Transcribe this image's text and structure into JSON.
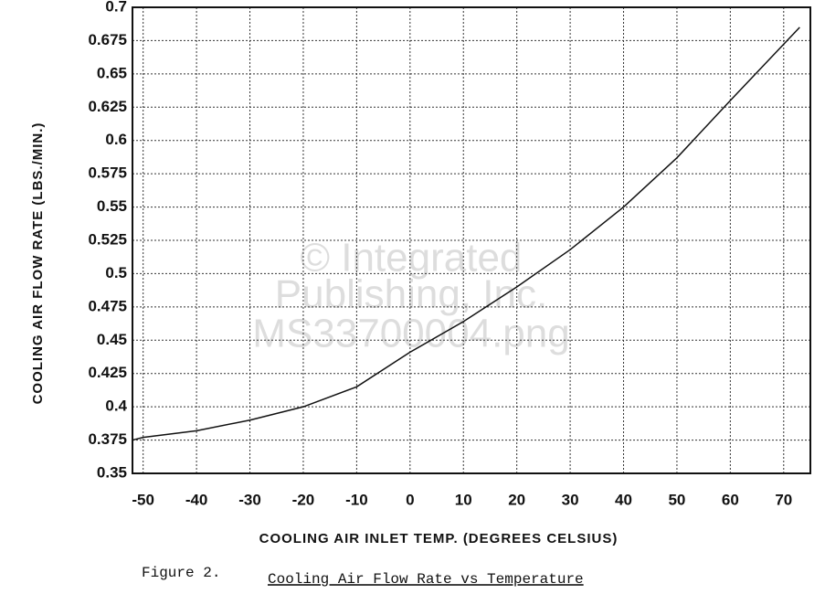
{
  "chart_data": {
    "type": "line",
    "x_label": "COOLING AIR INLET TEMP. (DEGREES CELSIUS)",
    "y_label": "COOLING AIR FLOW RATE (LBS./MIN.)",
    "caption_prefix": "Figure 2.",
    "caption": "Cooling Air Flow Rate vs Temperature",
    "watermark": [
      "© Integrated",
      "Publishing, Inc.",
      "MS33700004.png"
    ],
    "x": [
      -52,
      -50,
      -40,
      -30,
      -20,
      -10,
      0,
      10,
      20,
      30,
      40,
      50,
      60,
      73
    ],
    "series": [
      {
        "name": "Cooling air flow rate",
        "color": "#111111",
        "values": [
          0.375,
          0.377,
          0.382,
          0.39,
          0.4,
          0.415,
          0.441,
          0.464,
          0.49,
          0.518,
          0.55,
          0.587,
          0.63,
          0.685
        ]
      }
    ],
    "xlim": [
      -52,
      75
    ],
    "ylim": [
      0.35,
      0.7
    ],
    "xticks": [
      -50,
      -40,
      -30,
      -20,
      -10,
      0,
      10,
      20,
      30,
      40,
      50,
      60,
      70
    ],
    "yticks": [
      0.35,
      0.375,
      0.4,
      0.425,
      0.45,
      0.475,
      0.5,
      0.525,
      0.55,
      0.575,
      0.6,
      0.625,
      0.65,
      0.675,
      0.7
    ],
    "grid": true
  }
}
